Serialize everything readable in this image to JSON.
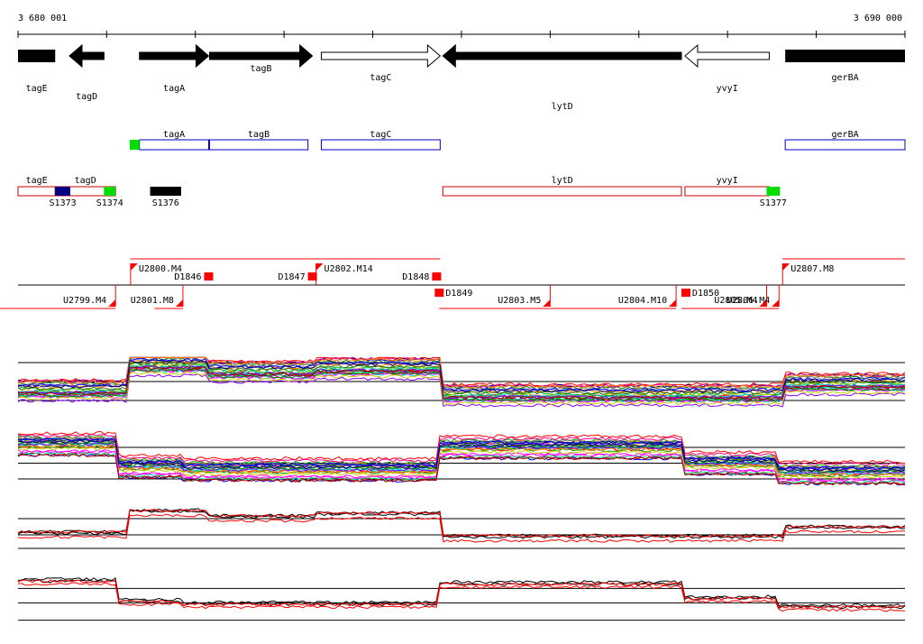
{
  "ruler": {
    "start_label": "3 680 001",
    "end_label": "3 690 000",
    "start": 3680001,
    "end": 3690000
  },
  "genes": [
    {
      "name": "tagE",
      "start": 3680001,
      "end": 3680420,
      "strand": "-",
      "filled": true,
      "label_row": 0
    },
    {
      "name": "tagD",
      "start": 3680580,
      "end": 3680970,
      "strand": "-",
      "filled": true,
      "label_row": 1
    },
    {
      "name": "tagA",
      "start": 3681370,
      "end": 3682150,
      "strand": "+",
      "filled": true,
      "label_row": 0
    },
    {
      "name": "tagB",
      "start": 3682160,
      "end": 3683320,
      "strand": "+",
      "filled": true,
      "label_row": -1
    },
    {
      "name": "tagC",
      "start": 3683420,
      "end": 3684760,
      "strand": "+",
      "filled": false,
      "label_row": 0
    },
    {
      "name": "lytD",
      "start": 3684790,
      "end": 3687480,
      "strand": "-",
      "filled": true,
      "label_row": 1
    },
    {
      "name": "yvyI",
      "start": 3687520,
      "end": 3688470,
      "strand": "-",
      "filled": false,
      "label_row": 0
    },
    {
      "name": "gerBA",
      "start": 3688650,
      "end": 3690000,
      "strand": "+",
      "filled": true,
      "label_row": 0
    }
  ],
  "operons_plus": [
    {
      "name": "tagA",
      "start": 3681370,
      "end": 3682150
    },
    {
      "name": "tagB",
      "start": 3682160,
      "end": 3683270
    },
    {
      "name": "tagC",
      "start": 3683420,
      "end": 3684760
    },
    {
      "name": "gerBA",
      "start": 3688650,
      "end": 3690000
    }
  ],
  "operons_minus": [
    {
      "name": "tagE",
      "start": 3680001,
      "end": 3680420
    },
    {
      "name": "tagD",
      "start": 3680420,
      "end": 3681100
    },
    {
      "name": "lytD",
      "start": 3684790,
      "end": 3687480
    },
    {
      "name": "yvyI",
      "start": 3687520,
      "end": 3688470
    }
  ],
  "boxes_plus": [
    {
      "start": 3681260,
      "end": 3681370,
      "color": "#00dd00"
    }
  ],
  "sites": [
    {
      "name": "S1373",
      "start": 3680420,
      "end": 3680590,
      "color": "#000080"
    },
    {
      "name": "S1374",
      "start": 3680970,
      "end": 3681100,
      "color": "#00dd00"
    },
    {
      "name": "S1376",
      "start": 3681490,
      "end": 3681840,
      "color": "#000000"
    },
    {
      "name": "S1377",
      "start": 3688440,
      "end": 3688590,
      "color": "#00dd00"
    }
  ],
  "upper_labels": [
    {
      "name": "U2800.M4",
      "pos": 3681270,
      "side": "above",
      "lines": [
        3681270,
        3684750
      ]
    },
    {
      "name": "U2802.M14",
      "pos": 3683360,
      "side": "above",
      "lines": [
        3683360,
        3684760
      ]
    },
    {
      "name": "U2807.M8",
      "pos": 3688620,
      "side": "above",
      "lines": [
        3688620,
        3690000
      ]
    },
    {
      "name": "D1846",
      "pos": 3682150,
      "side": "below-top",
      "lines": []
    },
    {
      "name": "D1847",
      "pos": 3683320,
      "side": "below-top",
      "lines": []
    },
    {
      "name": "D1848",
      "pos": 3684720,
      "side": "below-top",
      "lines": []
    }
  ],
  "lower_labels": [
    {
      "name": "U2799.M4",
      "pos": 3681100,
      "side": "below",
      "lines": [
        3679800,
        3681100
      ]
    },
    {
      "name": "U2801.M8",
      "pos": 3681860,
      "side": "below",
      "lines": [
        3681540,
        3681860
      ]
    },
    {
      "name": "U2803.M5",
      "pos": 3686000,
      "side": "below",
      "lines": [
        3684750,
        3686000
      ]
    },
    {
      "name": "U2804.M10",
      "pos": 3687420,
      "side": "below",
      "lines": [
        3684750,
        3687420
      ]
    },
    {
      "name": "U2805.M4",
      "pos": 3688440,
      "side": "below",
      "lines": [
        3687480,
        3688440
      ]
    },
    {
      "name": "U2806.M4",
      "pos": 3688580,
      "side": "below",
      "lines": [
        3687520,
        3688580
      ]
    },
    {
      "name": "D1849",
      "pos": 3684750,
      "side": "above-bottom",
      "lines": []
    },
    {
      "name": "D1850",
      "pos": 3687530,
      "side": "above-bottom",
      "lines": []
    }
  ],
  "profile_panels": [
    {
      "name": "upper-strand-profile",
      "baselines": [
        0.1,
        0.4,
        0.7
      ]
    },
    {
      "name": "lower-strand-profile",
      "baselines": [
        0.3,
        0.55,
        0.8
      ]
    },
    {
      "name": "upper-strand-pair",
      "baselines": [
        0.25,
        0.55,
        0.8
      ]
    },
    {
      "name": "lower-strand-pair",
      "baselines": [
        0.35,
        0.6,
        0.9
      ]
    }
  ],
  "colors": {
    "gene_fill": "#000000",
    "operon_plus": "#0000cc",
    "operon_minus": "#cc0000",
    "transcript": "#ff0000",
    "series_black": "#000000",
    "series_red": "#ff0000"
  }
}
